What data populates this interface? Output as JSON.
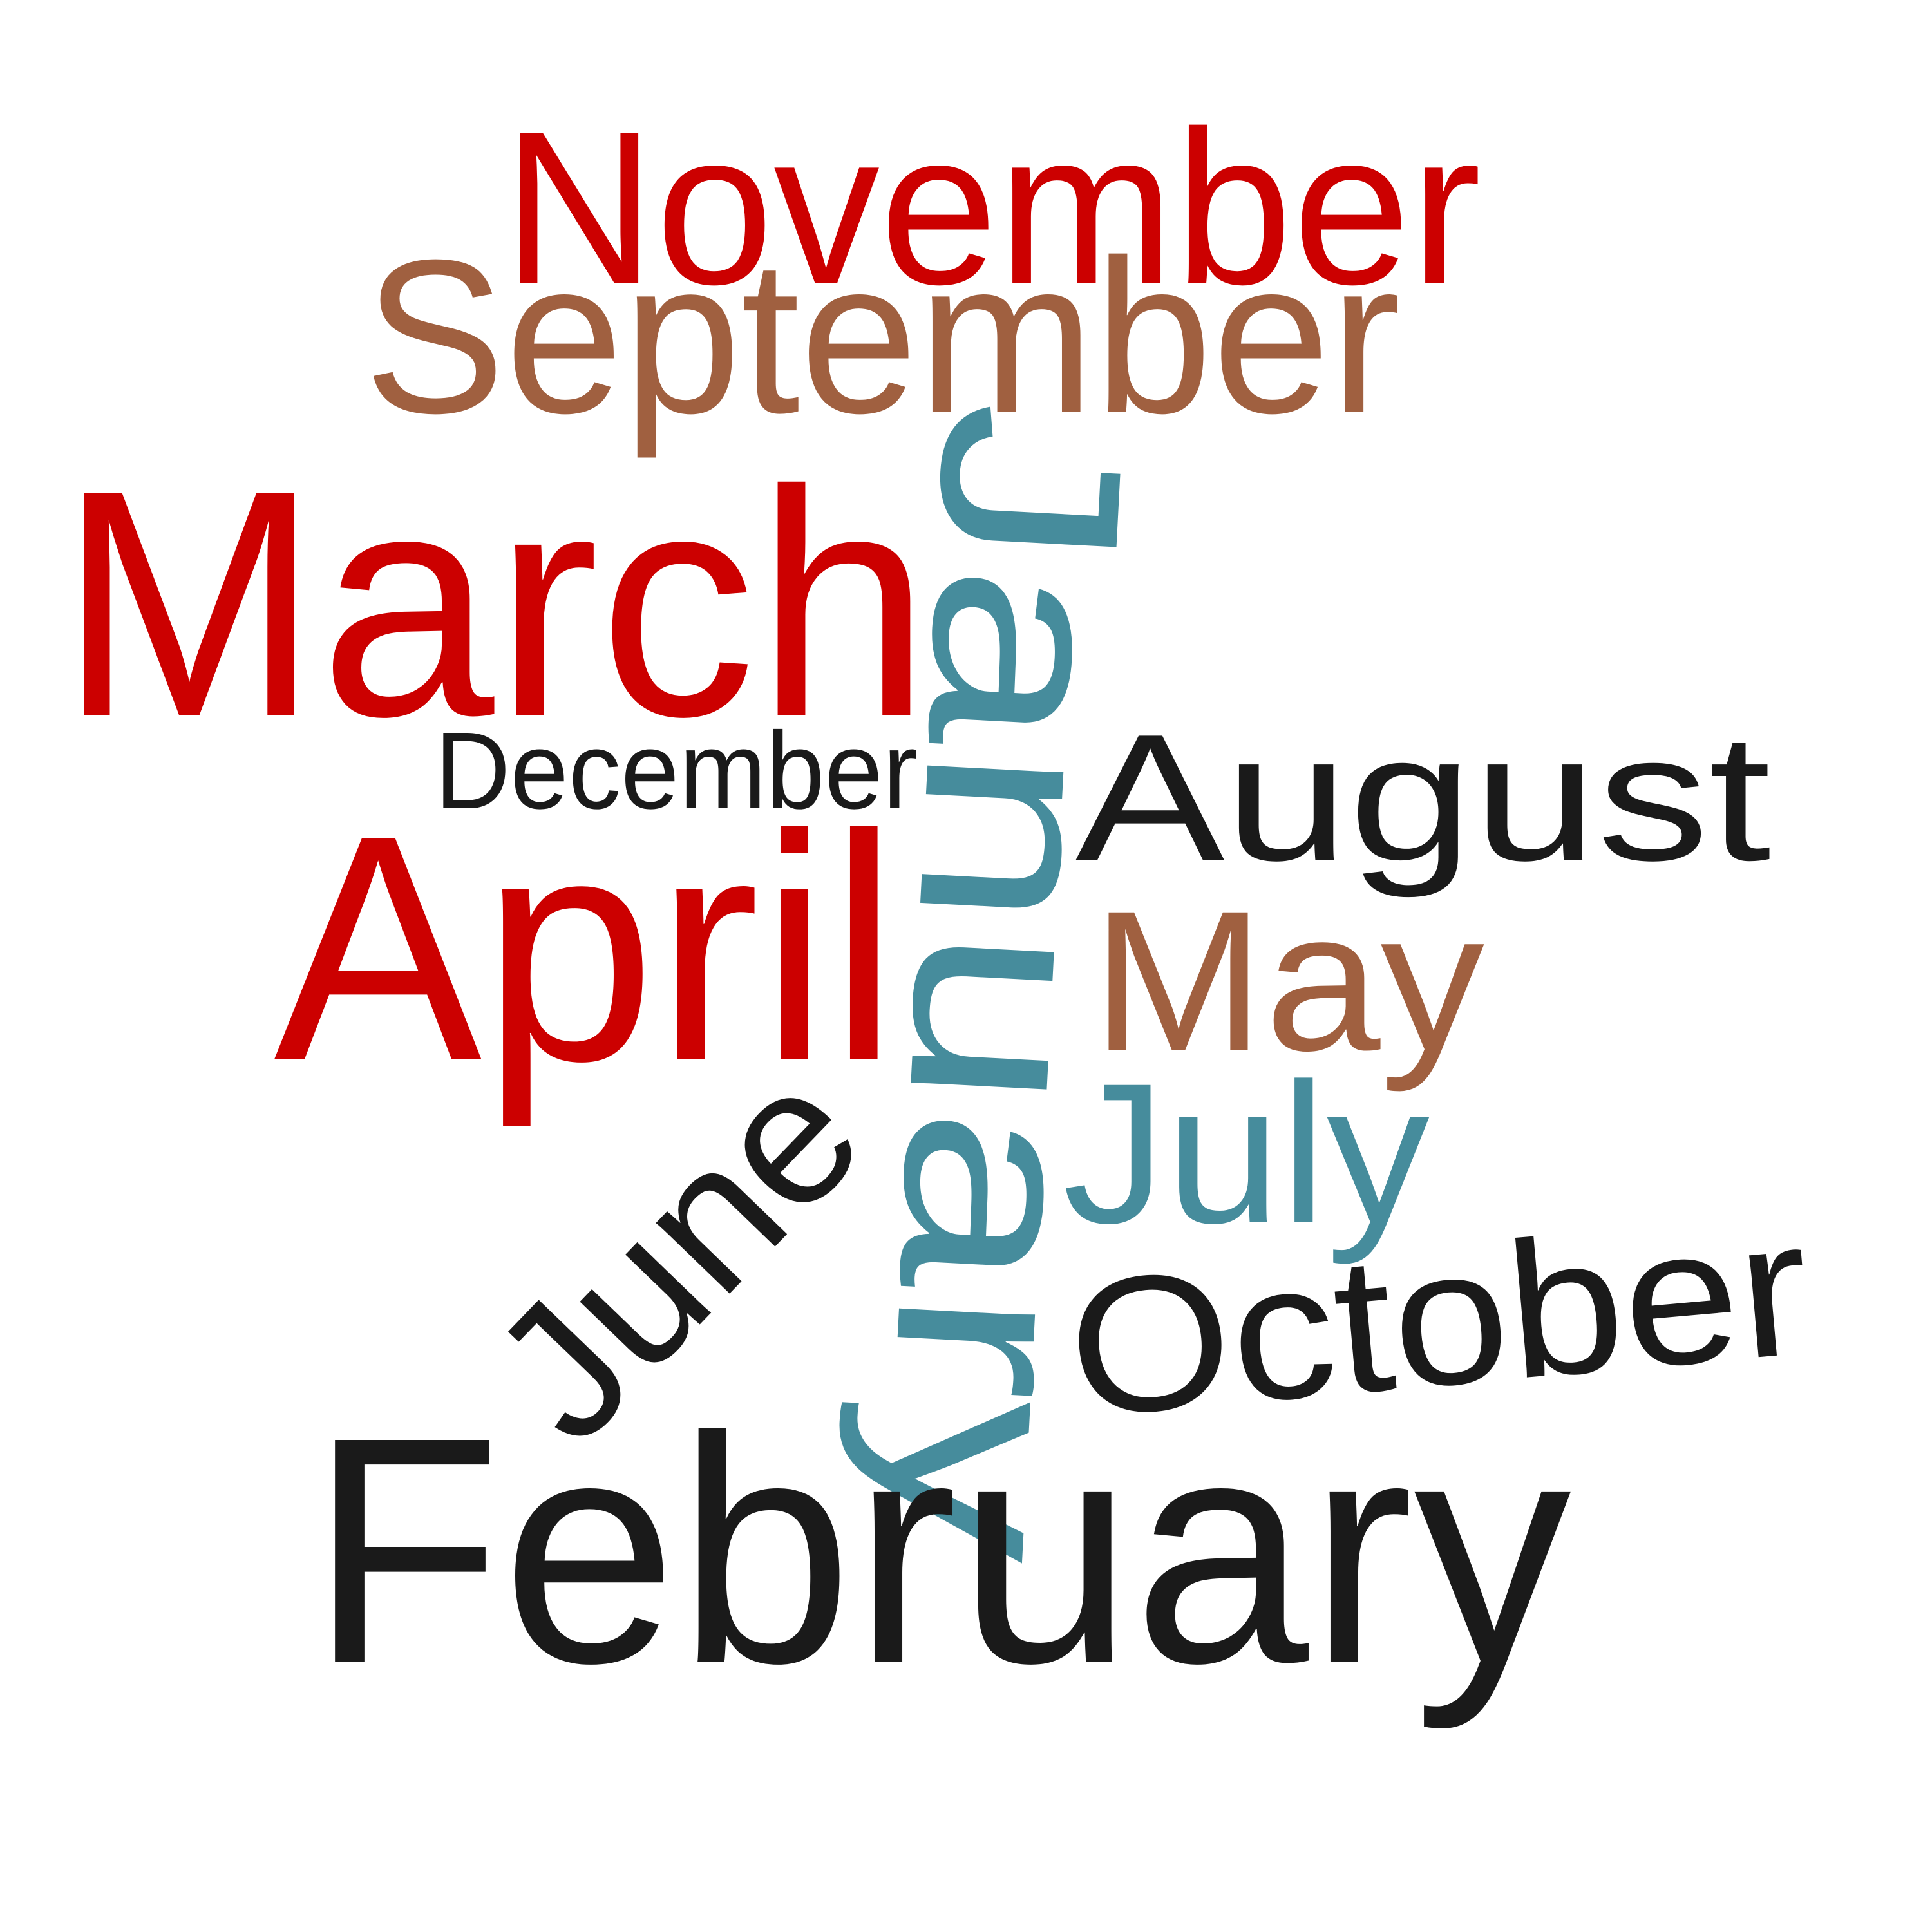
{
  "palette": {
    "red": "#cc0000",
    "brown": "#a06040",
    "teal": "#468c9c",
    "black": "#1a1a1a"
  },
  "words": [
    {
      "id": "november",
      "text": "November",
      "color": "#cc0000"
    },
    {
      "id": "september",
      "text": "September",
      "color": "#a06040"
    },
    {
      "id": "march",
      "text": "March",
      "color": "#cc0000"
    },
    {
      "id": "december",
      "text": "December",
      "color": "#1a1a1a"
    },
    {
      "id": "april",
      "text": "April",
      "color": "#cc0000"
    },
    {
      "id": "august",
      "text": "August",
      "color": "#1a1a1a"
    },
    {
      "id": "may",
      "text": "May",
      "color": "#a06040"
    },
    {
      "id": "july",
      "text": "July",
      "color": "#468c9c"
    },
    {
      "id": "june",
      "text": "June",
      "color": "#1a1a1a"
    },
    {
      "id": "october",
      "text": "October",
      "color": "#1a1a1a"
    },
    {
      "id": "january",
      "text": "January",
      "color": "#468c9c"
    },
    {
      "id": "february",
      "text": "February",
      "color": "#1a1a1a"
    }
  ]
}
